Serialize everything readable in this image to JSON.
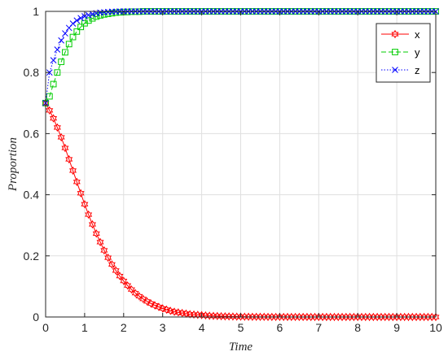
{
  "chart_data": {
    "type": "line",
    "title": "",
    "xlabel": "Time",
    "ylabel": "Proportion",
    "xlim": [
      0,
      10
    ],
    "ylim": [
      0,
      1
    ],
    "xticks": [
      "0",
      "1",
      "2",
      "3",
      "4",
      "5",
      "6",
      "7",
      "8",
      "9",
      "10"
    ],
    "yticks": [
      "0",
      "0.2",
      "0.4",
      "0.6",
      "0.8",
      "1"
    ],
    "grid": true,
    "legend_position": "top-right",
    "x": [
      0,
      0.1,
      0.2,
      0.3,
      0.4,
      0.5,
      0.6,
      0.7,
      0.8,
      0.9,
      1.0,
      1.1,
      1.2,
      1.3,
      1.4,
      1.5,
      1.6,
      1.7,
      1.8,
      1.9,
      2.0,
      2.1,
      2.2,
      2.3,
      2.4,
      2.5,
      2.6,
      2.7,
      2.8,
      2.9,
      3.0,
      3.1,
      3.2,
      3.3,
      3.4,
      3.5,
      3.6,
      3.7,
      3.8,
      3.9,
      4.0,
      4.1,
      4.2,
      4.3,
      4.4,
      4.5,
      4.6,
      4.7,
      4.8,
      4.9,
      5.0,
      5.1,
      5.2,
      5.3,
      5.4,
      5.5,
      5.6,
      5.7,
      5.8,
      5.9,
      6.0,
      6.1,
      6.2,
      6.3,
      6.4,
      6.5,
      6.6,
      6.7,
      6.8,
      6.9,
      7.0,
      7.1,
      7.2,
      7.3,
      7.4,
      7.5,
      7.6,
      7.7,
      7.8,
      7.9,
      8.0,
      8.1,
      8.2,
      8.3,
      8.4,
      8.5,
      8.6,
      8.7,
      8.8,
      8.9,
      9.0,
      9.1,
      9.2,
      9.3,
      9.4,
      9.5,
      9.6,
      9.7,
      9.8,
      9.9,
      10.0
    ],
    "series": [
      {
        "name": "x",
        "color": "#ff0000",
        "line_style": "solid",
        "marker": "hexagram",
        "values": [
          0.7,
          0.676,
          0.65,
          0.62,
          0.588,
          0.553,
          0.516,
          0.479,
          0.442,
          0.405,
          0.369,
          0.335,
          0.303,
          0.273,
          0.245,
          0.218,
          0.194,
          0.172,
          0.152,
          0.134,
          0.118,
          0.103,
          0.09,
          0.078,
          0.068,
          0.059,
          0.051,
          0.044,
          0.038,
          0.033,
          0.028,
          0.024,
          0.02,
          0.017,
          0.015,
          0.013,
          0.011,
          0.009,
          0.008,
          0.007,
          0.006,
          0.005,
          0.004,
          0.0035,
          0.003,
          0.0025,
          0.002,
          0.0017,
          0.0015,
          0.0012,
          0.001,
          0.0009,
          0.0007,
          0.0006,
          0.0005,
          0.0004,
          0.0004,
          0.0003,
          0.0003,
          0.0002,
          0.0002,
          0.0002,
          0.0001,
          0.0001,
          0.0001,
          0.0001,
          0.0001,
          0.0001,
          0,
          0,
          0,
          0,
          0,
          0,
          0,
          0,
          0,
          0,
          0,
          0,
          0,
          0,
          0,
          0,
          0,
          0,
          0,
          0,
          0,
          0,
          0,
          0,
          0,
          0,
          0,
          0,
          0,
          0,
          0,
          0,
          0
        ]
      },
      {
        "name": "y",
        "color": "#00cc00",
        "line_style": "dashed",
        "marker": "square",
        "values": [
          0.7,
          0.722,
          0.762,
          0.8,
          0.835,
          0.866,
          0.893,
          0.916,
          0.934,
          0.949,
          0.961,
          0.97,
          0.977,
          0.983,
          0.987,
          0.99,
          0.992,
          0.994,
          0.996,
          0.997,
          0.998,
          0.998,
          0.999,
          0.999,
          0.999,
          1,
          1,
          1,
          1,
          1,
          1,
          1,
          1,
          1,
          1,
          1,
          1,
          1,
          1,
          1,
          1,
          1,
          1,
          1,
          1,
          1,
          1,
          1,
          1,
          1,
          1,
          1,
          1,
          1,
          1,
          1,
          1,
          1,
          1,
          1,
          1,
          1,
          1,
          1,
          1,
          1,
          1,
          1,
          1,
          1,
          1,
          1,
          1,
          1,
          1,
          1,
          1,
          1,
          1,
          1,
          1,
          1,
          1,
          1,
          1,
          1,
          1,
          1,
          1,
          1,
          1,
          1,
          1,
          1,
          1,
          1,
          1,
          1,
          1,
          1,
          1
        ]
      },
      {
        "name": "z",
        "color": "#0000ff",
        "line_style": "dotted",
        "marker": "x",
        "values": [
          0.7,
          0.8,
          0.84,
          0.875,
          0.905,
          0.928,
          0.946,
          0.96,
          0.97,
          0.978,
          0.984,
          0.988,
          0.991,
          0.994,
          0.996,
          0.997,
          0.998,
          0.999,
          0.999,
          1,
          1,
          1,
          1,
          1,
          1,
          1,
          1,
          1,
          1,
          1,
          1,
          1,
          1,
          1,
          1,
          1,
          1,
          1,
          1,
          1,
          1,
          1,
          1,
          1,
          1,
          1,
          1,
          1,
          1,
          1,
          1,
          1,
          1,
          1,
          1,
          1,
          1,
          1,
          1,
          1,
          1,
          1,
          1,
          1,
          1,
          1,
          1,
          1,
          1,
          1,
          1,
          1,
          1,
          1,
          1,
          1,
          1,
          1,
          1,
          1,
          1,
          1,
          1,
          1,
          1,
          1,
          1,
          1,
          1,
          1,
          1,
          1,
          1,
          1,
          1,
          1,
          1,
          1,
          1,
          1,
          1
        ]
      }
    ]
  }
}
